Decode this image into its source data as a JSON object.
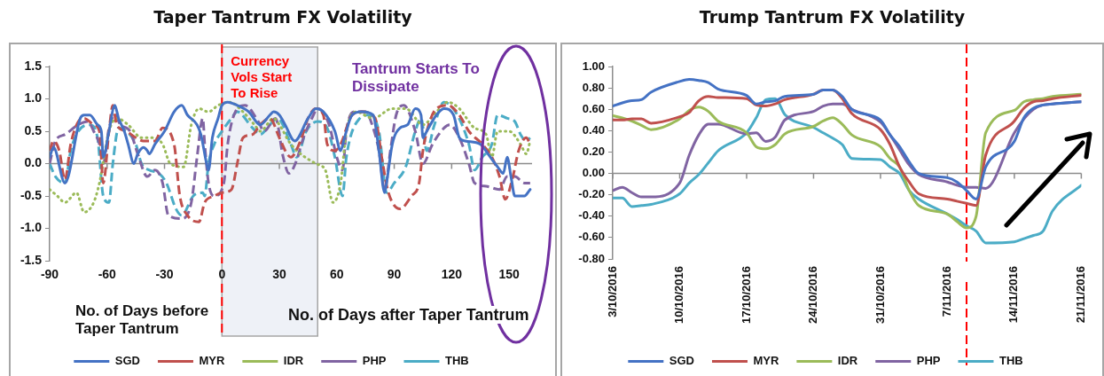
{
  "chart_data": [
    {
      "type": "line",
      "title": "Taper Tantrum FX Volatility",
      "xlim": [
        -90,
        162
      ],
      "xticks": [
        -90,
        -60,
        -30,
        0,
        30,
        60,
        90,
        120,
        150
      ],
      "ylim": [
        -1.5,
        1.5
      ],
      "yticks": [
        {
          "value": -1.5,
          "label": "-1.5"
        },
        {
          "value": -1,
          "label": "-1.0"
        },
        {
          "value": -0.5,
          "label": "-0.5"
        },
        {
          "value": 0,
          "label": "0.0"
        },
        {
          "value": 0.5,
          "label": "0.5"
        },
        {
          "value": 1,
          "label": "1.0"
        },
        {
          "value": 1.5,
          "label": "1.5"
        }
      ],
      "legend": "bottom",
      "ref_lines": [
        {
          "axis": "x",
          "value": 0,
          "label": "Currency Vols Start To Rise",
          "color": "#ff0000",
          "line_style": "dashed"
        }
      ],
      "bands": [
        {
          "axis": "x",
          "from": 0,
          "to": 50,
          "color": "#eef1f7"
        }
      ],
      "annotations": [
        "Tantrum Starts To Dissipate",
        "No. of Days before Taper Tantrum",
        "No. of Days after Taper Tantrum"
      ],
      "series": [
        {
          "name": "SGD",
          "color": "#4472c4",
          "line_style": "solid",
          "x": [
            -90,
            -88,
            -82,
            -74,
            -72,
            -69,
            -65,
            -63,
            -62,
            -59,
            -56,
            -54,
            -51,
            -49,
            -46,
            -44,
            -41,
            -39,
            -38,
            -35,
            -30,
            -25,
            -21,
            -18,
            -13,
            -11,
            -8,
            -7,
            -5,
            -2,
            0,
            3,
            8,
            14,
            20,
            25,
            27,
            30,
            33,
            38,
            45,
            49,
            53,
            59,
            62,
            64,
            68,
            73,
            79,
            82,
            85,
            86,
            89,
            93,
            97,
            101,
            104,
            105,
            107,
            112,
            116,
            121,
            124,
            127,
            135,
            139,
            144,
            147,
            149,
            151,
            153,
            158,
            161
          ],
          "values": [
            0.1,
            0.25,
            -0.3,
            0.7,
            0.75,
            0.75,
            0.6,
            0.5,
            0.1,
            0.5,
            0.9,
            0.7,
            0.5,
            0.3,
            0.0,
            0.15,
            0.25,
            0.2,
            0.15,
            0.3,
            0.5,
            0.8,
            0.9,
            0.75,
            0.6,
            0.45,
            0.0,
            -0.1,
            0.4,
            0.7,
            0.9,
            0.95,
            0.9,
            0.8,
            0.6,
            0.75,
            0.8,
            0.75,
            0.6,
            0.35,
            0.7,
            0.85,
            0.8,
            0.5,
            0.2,
            0.4,
            0.75,
            0.8,
            0.75,
            0.2,
            -0.45,
            -0.3,
            0.3,
            0.55,
            0.6,
            0.85,
            0.75,
            0.4,
            0.5,
            0.75,
            0.85,
            0.75,
            0.4,
            0.35,
            0.3,
            0.15,
            -0.05,
            -0.15,
            0.1,
            -0.2,
            -0.5,
            -0.5,
            -0.4
          ]
        },
        {
          "name": "MYR",
          "color": "#c0504d",
          "line_style": "dashed",
          "x": [
            -90,
            -88,
            -85,
            -82,
            -79,
            -75,
            -72,
            -67,
            -64,
            -62,
            -59,
            -57,
            -55,
            -50,
            -45,
            -41,
            -35,
            -31,
            -25,
            -22,
            -18,
            -12,
            -9,
            -4,
            0,
            5,
            8,
            11,
            16,
            20,
            25,
            30,
            34,
            36,
            41,
            45,
            49,
            53,
            55,
            59,
            62,
            68,
            73,
            80,
            84,
            87,
            93,
            99,
            103,
            105,
            108,
            112,
            118,
            124,
            129,
            136,
            141,
            145,
            148,
            152,
            155,
            159,
            161
          ],
          "values": [
            0.2,
            0.35,
            0.2,
            -0.25,
            0.3,
            0.65,
            0.7,
            0.6,
            0.5,
            -0.3,
            0.5,
            0.9,
            0.6,
            0.5,
            0.4,
            0.35,
            0.35,
            0.55,
            0.3,
            -0.5,
            -0.8,
            -0.9,
            -0.6,
            -0.5,
            -0.45,
            -0.4,
            0.0,
            0.4,
            0.45,
            0.6,
            0.7,
            0.4,
            0.15,
            0.1,
            0.35,
            0.7,
            0.85,
            0.75,
            0.3,
            0.2,
            0.3,
            0.75,
            0.8,
            0.7,
            0.0,
            -0.45,
            -0.7,
            -0.5,
            -0.3,
            0.2,
            0.6,
            0.85,
            0.9,
            0.75,
            0.5,
            0.3,
            0.1,
            -0.2,
            -0.55,
            -0.2,
            0.2,
            0.4,
            0.3
          ]
        },
        {
          "name": "IDR",
          "color": "#9bbb59",
          "line_style": "dotted",
          "x": [
            -90,
            -86,
            -82,
            -76,
            -72,
            -67,
            -64,
            -59,
            -55,
            -49,
            -42,
            -36,
            -31,
            -27,
            -20,
            -16,
            -12,
            -7,
            -2,
            4,
            11,
            17,
            20,
            27,
            30,
            36,
            49,
            54,
            58,
            62,
            65,
            70,
            79,
            89,
            96,
            105,
            112,
            118,
            124,
            132,
            138,
            141,
            144,
            150,
            156,
            159,
            161
          ],
          "values": [
            -0.4,
            -0.5,
            -0.6,
            -0.45,
            -0.75,
            -0.6,
            -0.3,
            0.5,
            0.7,
            0.6,
            0.4,
            0.4,
            0.3,
            0.0,
            -0.05,
            0.6,
            0.85,
            0.8,
            0.9,
            0.95,
            0.8,
            0.6,
            0.5,
            0.7,
            0.6,
            0.3,
            0.0,
            -0.1,
            -0.6,
            -0.3,
            0.5,
            0.8,
            0.7,
            0.85,
            0.85,
            0.6,
            0.8,
            0.95,
            0.85,
            0.55,
            0.45,
            0.1,
            0.5,
            0.5,
            0.3,
            0.15,
            0.35
          ]
        },
        {
          "name": "PHP",
          "color": "#8064a2",
          "line_style": "dashed",
          "x": [
            -90,
            -87,
            -82,
            -75,
            -70,
            -67,
            -64,
            -62,
            -59,
            -56,
            -53,
            -48,
            -44,
            -39,
            -35,
            -31,
            -28,
            -21,
            -16,
            -13,
            -10,
            -9,
            -7,
            -4,
            1,
            3,
            7,
            12,
            19,
            22,
            28,
            32,
            35,
            39,
            42,
            47,
            50,
            56,
            60,
            63,
            65,
            69,
            75,
            79,
            82,
            85,
            88,
            91,
            95,
            101,
            105,
            110,
            116,
            119,
            124,
            129,
            132,
            138,
            145,
            149,
            153,
            158,
            161
          ],
          "values": [
            0.0,
            0.35,
            0.45,
            0.6,
            0.65,
            0.5,
            0.3,
            0.0,
            0.55,
            0.75,
            0.6,
            0.5,
            0.15,
            -0.2,
            -0.1,
            -0.3,
            -0.8,
            -0.85,
            -0.6,
            0.1,
            0.7,
            0.3,
            -0.3,
            -0.5,
            -0.3,
            0.3,
            0.8,
            0.9,
            0.65,
            0.5,
            0.7,
            0.1,
            -0.15,
            0.05,
            0.35,
            0.7,
            0.85,
            0.6,
            0.1,
            -0.1,
            0.5,
            0.8,
            0.8,
            0.55,
            0.2,
            -0.4,
            0.2,
            0.75,
            0.9,
            0.5,
            0.0,
            0.3,
            0.55,
            0.6,
            0.4,
            0.0,
            -0.3,
            -0.35,
            -0.4,
            -0.2,
            -0.2,
            -0.3,
            -0.3
          ]
        },
        {
          "name": "THB",
          "color": "#4bacc6",
          "line_style": "dashed",
          "x": [
            -90,
            -87,
            -82,
            -79,
            -75,
            -69,
            -65,
            -62,
            -59,
            -57,
            -54,
            -50,
            -45,
            -42,
            -38,
            -33,
            -29,
            -24,
            -21,
            -15,
            -10,
            -9,
            -7,
            -4,
            0,
            5,
            8,
            16,
            20,
            25,
            29,
            36,
            39,
            44,
            50,
            55,
            59,
            63,
            65,
            72,
            76,
            82,
            86,
            90,
            96,
            101,
            104,
            107,
            111,
            116,
            122,
            129,
            132,
            136,
            141,
            144,
            149,
            153,
            156,
            159,
            161
          ],
          "values": [
            0.0,
            -0.2,
            -0.3,
            0.2,
            0.5,
            0.6,
            0.4,
            -0.5,
            -0.6,
            0.0,
            0.55,
            0.5,
            0.3,
            0.0,
            -0.1,
            -0.15,
            -0.3,
            -0.7,
            -0.8,
            -0.5,
            -0.45,
            -0.5,
            0.0,
            0.3,
            0.5,
            0.7,
            0.8,
            0.55,
            0.45,
            0.6,
            0.7,
            0.3,
            0.1,
            0.5,
            0.65,
            0.55,
            0.1,
            -0.5,
            0.1,
            0.7,
            0.75,
            0.5,
            -0.45,
            -0.3,
            -0.05,
            0.5,
            0.7,
            0.2,
            0.6,
            0.95,
            0.8,
            0.3,
            -0.1,
            0.1,
            0.3,
            0.75,
            0.7,
            0.65,
            0.45,
            0.35,
            0.4
          ]
        }
      ]
    },
    {
      "type": "line",
      "title": "Trump Tantrum FX Volatility",
      "x": [
        "2016-10-03",
        "2016-10-04",
        "2016-10-05",
        "2016-10-06",
        "2016-10-07",
        "2016-10-10",
        "2016-10-11",
        "2016-10-12",
        "2016-10-13",
        "2016-10-14",
        "2016-10-17",
        "2016-10-18",
        "2016-10-19",
        "2016-10-20",
        "2016-10-21",
        "2016-10-24",
        "2016-10-25",
        "2016-10-26",
        "2016-10-27",
        "2016-10-28",
        "2016-10-31",
        "2016-11-01",
        "2016-11-02",
        "2016-11-03",
        "2016-11-04",
        "2016-11-07",
        "2016-11-08",
        "2016-11-09",
        "2016-11-10",
        "2016-11-11",
        "2016-11-14",
        "2016-11-15",
        "2016-11-16",
        "2016-11-17",
        "2016-11-18",
        "2016-11-21"
      ],
      "xlim": [
        "2016-10-03",
        "2016-11-21"
      ],
      "xticks": [
        {
          "value": "2016-10-03",
          "label": "3/10/2016"
        },
        {
          "value": "2016-10-10",
          "label": "10/10/2016"
        },
        {
          "value": "2016-10-17",
          "label": "17/10/2016"
        },
        {
          "value": "2016-10-24",
          "label": "24/10/2016"
        },
        {
          "value": "2016-10-31",
          "label": "31/10/2016"
        },
        {
          "value": "2016-11-07",
          "label": "7/11/2016"
        },
        {
          "value": "2016-11-14",
          "label": "14/11/2016"
        },
        {
          "value": "2016-11-21",
          "label": "21/11/2016"
        }
      ],
      "ylim": [
        -0.8,
        1.0
      ],
      "yticks": [
        {
          "value": -0.8,
          "label": "-0.80"
        },
        {
          "value": -0.6,
          "label": "-0.60"
        },
        {
          "value": -0.4,
          "label": "-0.40"
        },
        {
          "value": -0.2,
          "label": "-0.20"
        },
        {
          "value": 0,
          "label": "0.00"
        },
        {
          "value": 0.2,
          "label": "0.20"
        },
        {
          "value": 0.4,
          "label": "0.40"
        },
        {
          "value": 0.6,
          "label": "0.60"
        },
        {
          "value": 0.8,
          "label": "0.80"
        },
        {
          "value": 1.0,
          "label": "1.00"
        }
      ],
      "legend": "bottom",
      "ref_lines": [
        {
          "axis": "x",
          "value": "2016-11-09",
          "color": "#ff0000",
          "line_style": "dashed"
        }
      ],
      "series": [
        {
          "name": "SGD",
          "color": "#4472c4",
          "values": [
            0.63,
            0.66,
            0.68,
            0.69,
            0.76,
            0.86,
            0.88,
            0.87,
            0.85,
            0.79,
            0.73,
            0.65,
            0.67,
            0.68,
            0.72,
            0.74,
            0.78,
            0.78,
            0.72,
            0.6,
            0.5,
            0.36,
            0.25,
            0.11,
            0.0,
            -0.04,
            -0.08,
            -0.16,
            -0.24,
            0.06,
            0.3,
            0.52,
            0.61,
            0.64,
            0.65,
            0.67
          ]
        },
        {
          "name": "MYR",
          "color": "#c0504d",
          "values": [
            0.5,
            0.5,
            0.51,
            0.51,
            0.47,
            0.53,
            0.57,
            0.68,
            0.72,
            0.71,
            0.7,
            0.64,
            0.63,
            0.65,
            0.69,
            0.74,
            0.78,
            0.78,
            0.7,
            0.56,
            0.41,
            0.27,
            0.06,
            -0.08,
            -0.19,
            -0.24,
            -0.26,
            -0.28,
            -0.3,
            0.17,
            0.49,
            0.61,
            0.67,
            0.68,
            0.7,
            0.73
          ]
        },
        {
          "name": "IDR",
          "color": "#9bbb59",
          "values": [
            0.54,
            0.52,
            0.49,
            0.45,
            0.41,
            0.51,
            0.59,
            0.62,
            0.58,
            0.49,
            0.38,
            0.25,
            0.23,
            0.27,
            0.37,
            0.44,
            0.49,
            0.52,
            0.46,
            0.36,
            0.25,
            0.14,
            0.06,
            -0.16,
            -0.3,
            -0.38,
            -0.45,
            -0.51,
            -0.4,
            0.38,
            0.59,
            0.67,
            0.69,
            0.7,
            0.72,
            0.74
          ]
        },
        {
          "name": "PHP",
          "color": "#8064a2",
          "values": [
            -0.16,
            -0.13,
            -0.18,
            -0.22,
            -0.22,
            -0.09,
            0.17,
            0.36,
            0.46,
            0.46,
            0.37,
            0.38,
            0.3,
            0.34,
            0.5,
            0.58,
            0.63,
            0.65,
            0.65,
            0.6,
            0.48,
            0.36,
            0.22,
            0.08,
            -0.01,
            -0.08,
            -0.11,
            -0.13,
            -0.13,
            -0.14,
            0.38,
            0.51,
            0.6,
            0.64,
            0.65,
            0.67
          ]
        },
        {
          "name": "THB",
          "color": "#4bacc6",
          "values": [
            -0.23,
            -0.23,
            -0.31,
            -0.3,
            -0.29,
            -0.19,
            -0.09,
            -0.01,
            0.1,
            0.21,
            0.38,
            0.52,
            0.69,
            0.7,
            0.55,
            0.43,
            0.38,
            0.33,
            0.27,
            0.14,
            0.13,
            0.06,
            0.0,
            -0.16,
            -0.24,
            -0.38,
            -0.43,
            -0.49,
            -0.54,
            -0.65,
            -0.64,
            -0.61,
            -0.58,
            -0.54,
            -0.35,
            -0.11
          ]
        }
      ]
    }
  ]
}
